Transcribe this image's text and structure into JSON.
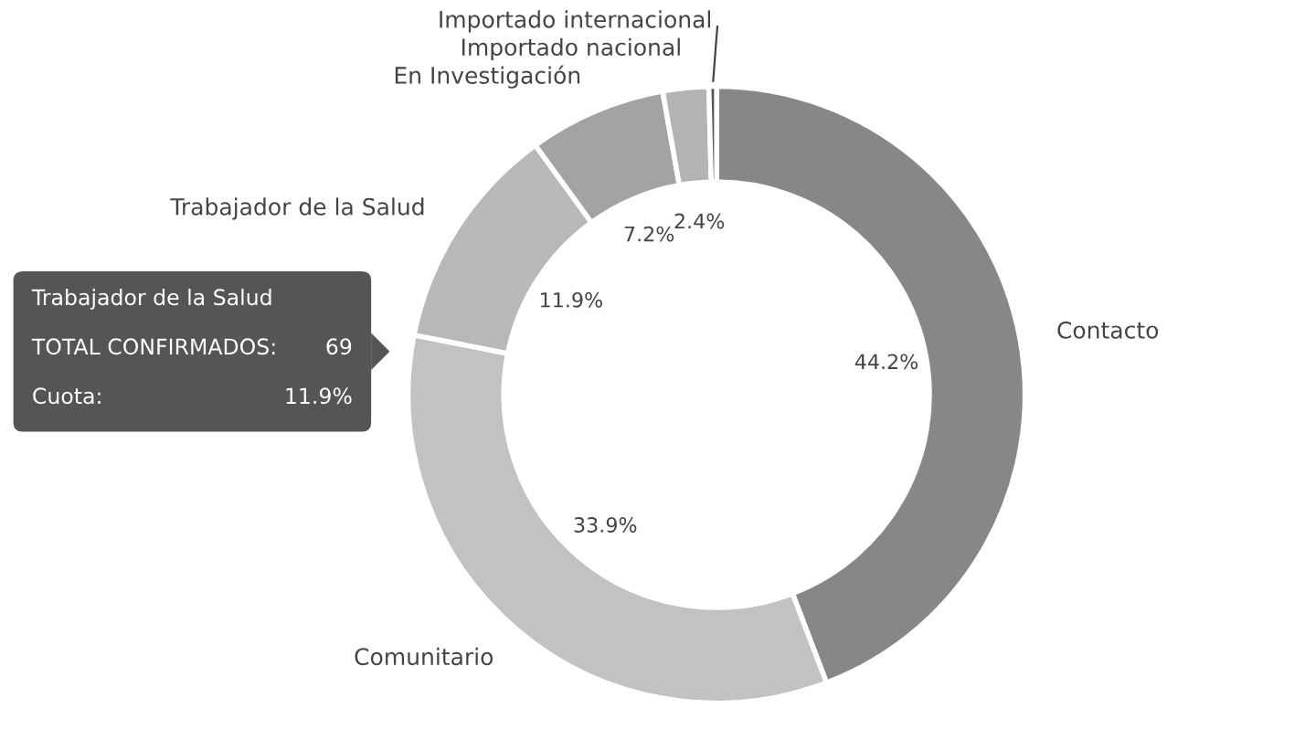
{
  "chart_data": {
    "type": "donut",
    "categories": [
      "Contacto",
      "Comunitario",
      "Trabajador de la Salud",
      "En Investigación",
      "Importado nacional",
      "Importado internacional"
    ],
    "values": [
      44.2,
      33.9,
      11.9,
      7.2,
      2.4,
      0.4
    ],
    "colors": [
      "#878787",
      "#c2c2c2",
      "#b8b8b8",
      "#a3a3a3",
      "#b3b3b3",
      "#555555"
    ],
    "value_labels": [
      "44.2%",
      "33.9%",
      "11.9%",
      "7.2%",
      "2.4%",
      null
    ],
    "annotations": [
      "Trabajador de la Salud",
      "TOTAL CONFIRMADOS:",
      "69",
      "Cuota:",
      "11.9%"
    ]
  }
}
